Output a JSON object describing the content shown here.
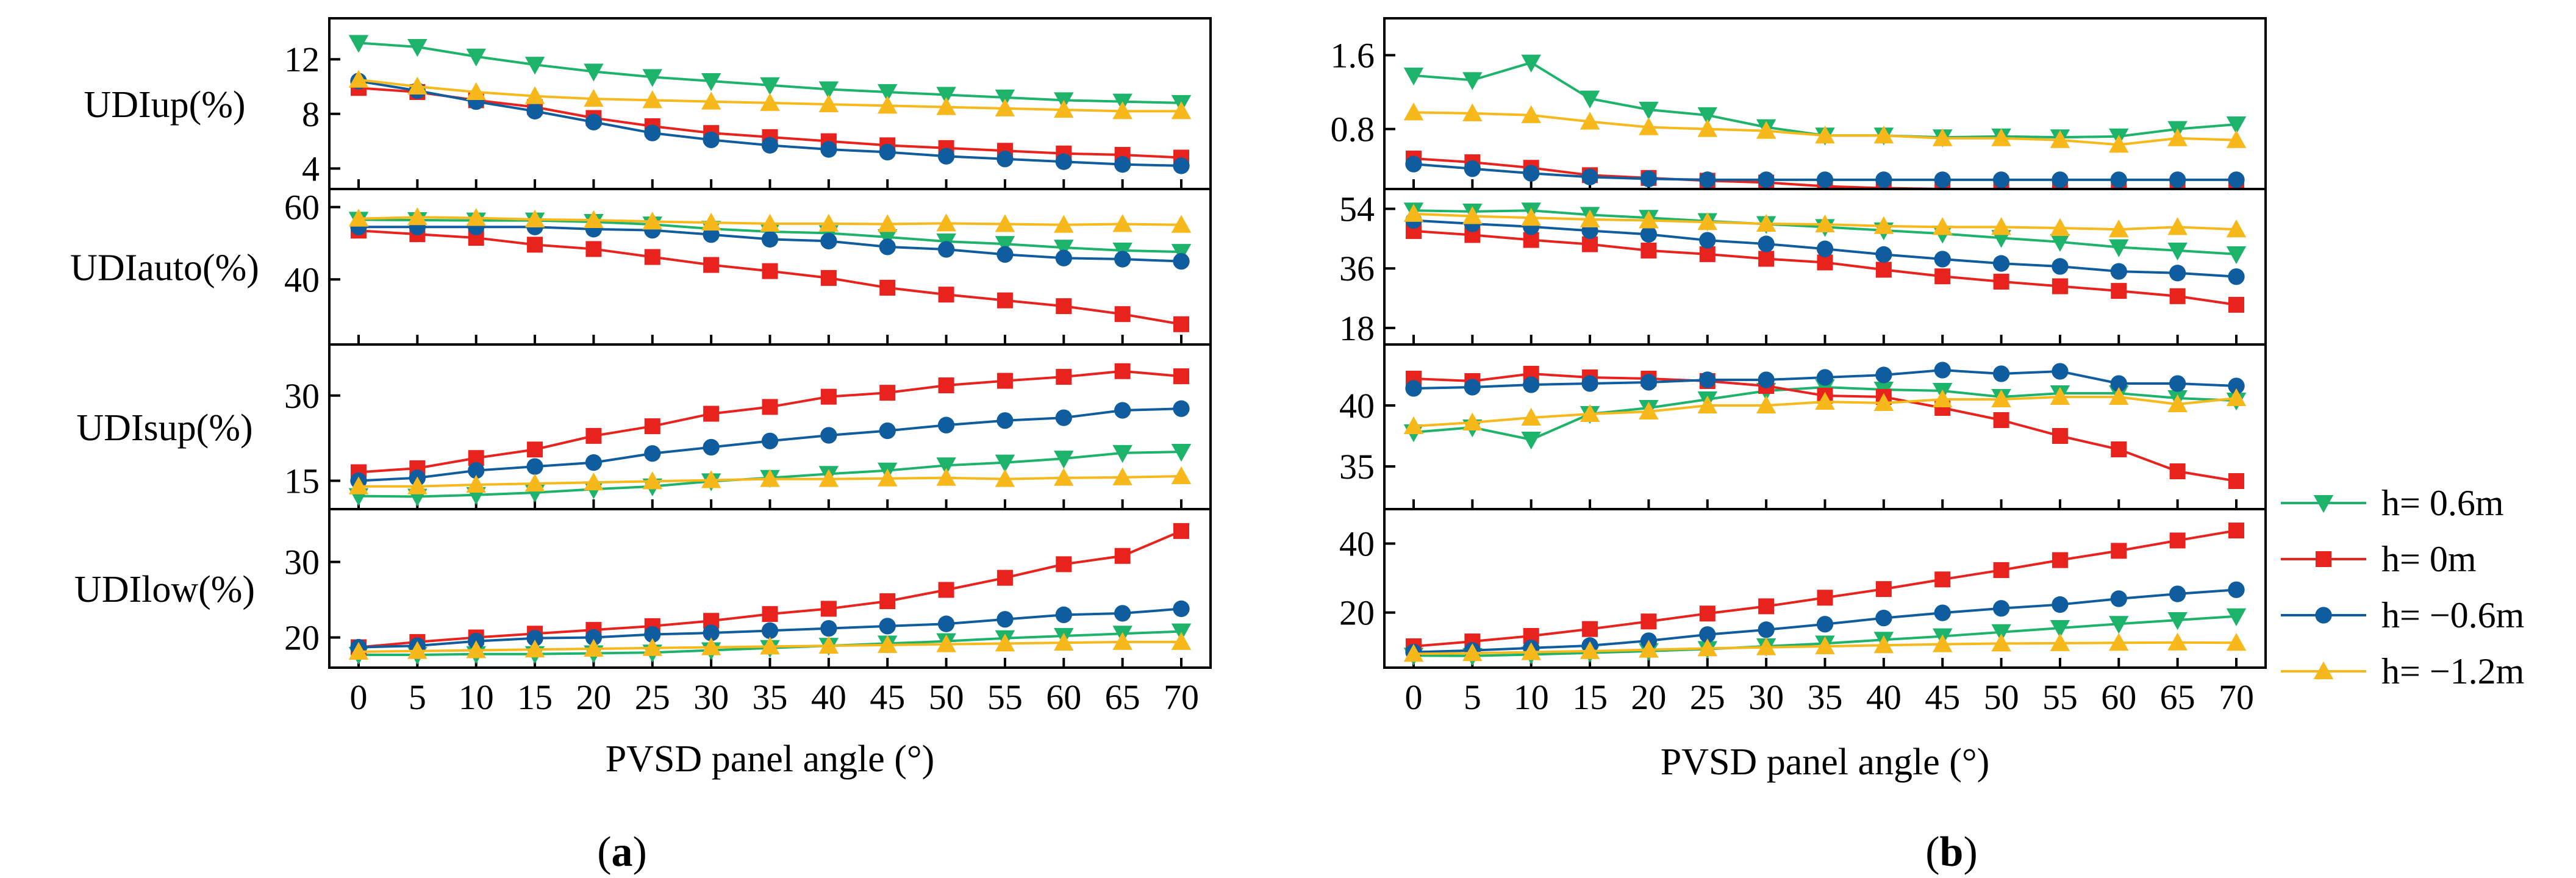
{
  "figure_labels": {
    "a": {
      "open": "(",
      "letter": "a",
      "close": ")"
    },
    "b": {
      "open": "(",
      "letter": "b",
      "close": ")"
    }
  },
  "colors": {
    "h= 0.6m": "#1db36b",
    "h= 0m": "#e8221d",
    "h= −0.6m": "#0f5d9e",
    "h= −1.2m": "#f6b81a"
  },
  "legend": [
    {
      "label": "h= 0.6m",
      "marker": "triangle-down"
    },
    {
      "label": "h= 0m",
      "marker": "square"
    },
    {
      "label": "h= −0.6m",
      "marker": "circle"
    },
    {
      "label": "h= −1.2m",
      "marker": "triangle-up"
    }
  ],
  "chart_data": [
    {
      "type": "line",
      "id": "a",
      "xlabel": "PVSD panel angle (°)",
      "x": [
        0,
        5,
        10,
        15,
        20,
        25,
        30,
        35,
        40,
        45,
        50,
        55,
        60,
        65,
        70
      ],
      "panels": [
        {
          "ylabel": "UDIup(%)",
          "ylim": [
            2.5,
            15
          ],
          "yticks": [
            4,
            8,
            12
          ],
          "series": [
            {
              "name": "h= 0.6m",
              "values": [
                13.2,
                12.9,
                12.2,
                11.6,
                11.1,
                10.7,
                10.4,
                10.1,
                9.8,
                9.6,
                9.4,
                9.2,
                9.0,
                8.9,
                8.8
              ]
            },
            {
              "name": "h= 0m",
              "values": [
                9.9,
                9.6,
                9.0,
                8.5,
                7.7,
                7.1,
                6.6,
                6.3,
                6.0,
                5.7,
                5.5,
                5.3,
                5.1,
                5.0,
                4.8
              ]
            },
            {
              "name": "h= −0.6m",
              "values": [
                10.4,
                9.7,
                8.9,
                8.2,
                7.4,
                6.6,
                6.1,
                5.7,
                5.4,
                5.2,
                4.9,
                4.7,
                4.5,
                4.3,
                4.2
              ]
            },
            {
              "name": "h= −1.2m",
              "values": [
                10.5,
                10.0,
                9.6,
                9.3,
                9.1,
                9.0,
                8.9,
                8.8,
                8.7,
                8.6,
                8.5,
                8.4,
                8.3,
                8.2,
                8.2
              ]
            }
          ]
        },
        {
          "ylabel": "UDIauto(%)",
          "ylim": [
            22,
            65
          ],
          "yticks": [
            40,
            60
          ],
          "series": [
            {
              "name": "h= 0.6m",
              "values": [
                56.5,
                56.4,
                56.3,
                56.3,
                55.9,
                55.2,
                54.0,
                53.2,
                52.8,
                51.7,
                50.5,
                49.8,
                48.8,
                48.0,
                47.6
              ]
            },
            {
              "name": "h= 0m",
              "values": [
                53.5,
                52.5,
                51.5,
                49.6,
                48.4,
                46.2,
                44.0,
                42.3,
                40.4,
                37.7,
                35.8,
                34.2,
                32.6,
                30.4,
                27.6
              ]
            },
            {
              "name": "h= −0.6m",
              "values": [
                54.5,
                54.5,
                54.5,
                54.5,
                53.9,
                53.6,
                52.4,
                51.1,
                50.6,
                49.0,
                48.3,
                46.9,
                45.9,
                45.6,
                45.0
              ]
            },
            {
              "name": "h= −1.2m",
              "values": [
                56.8,
                57.2,
                57.0,
                56.6,
                56.4,
                56.0,
                55.7,
                55.4,
                55.4,
                55.3,
                55.5,
                55.3,
                55.1,
                55.3,
                55.1
              ]
            }
          ]
        },
        {
          "ylabel": "UDIsup(%)",
          "ylim": [
            10,
            39
          ],
          "yticks": [
            15,
            30
          ],
          "series": [
            {
              "name": "h= 0.6m",
              "values": [
                12.3,
                12.2,
                12.5,
                12.9,
                13.5,
                14.0,
                14.9,
                15.5,
                16.2,
                16.8,
                17.7,
                18.2,
                18.9,
                19.9,
                20.1
              ]
            },
            {
              "name": "h= 0m",
              "values": [
                16.5,
                17.2,
                19.0,
                20.5,
                22.9,
                24.6,
                26.8,
                28.0,
                29.8,
                30.5,
                31.8,
                32.6,
                33.3,
                34.3,
                33.4
              ]
            },
            {
              "name": "h= −0.6m",
              "values": [
                15.0,
                15.5,
                16.8,
                17.5,
                18.2,
                19.8,
                20.9,
                22.0,
                23.0,
                23.8,
                24.8,
                25.6,
                26.1,
                27.4,
                27.7
              ]
            },
            {
              "name": "h= −1.2m",
              "values": [
                14.0,
                14.0,
                14.3,
                14.5,
                14.7,
                14.9,
                15.1,
                15.3,
                15.3,
                15.4,
                15.5,
                15.3,
                15.5,
                15.6,
                15.8
              ]
            }
          ]
        },
        {
          "ylabel": "UDIlow(%)",
          "ylim": [
            16,
            37
          ],
          "yticks": [
            20,
            30
          ],
          "series": [
            {
              "name": "h= 0.6m",
              "values": [
                17.7,
                17.7,
                17.8,
                17.8,
                17.9,
                18.0,
                18.3,
                18.6,
                18.9,
                19.2,
                19.5,
                19.9,
                20.2,
                20.5,
                20.8
              ]
            },
            {
              "name": "h= 0m",
              "values": [
                18.7,
                19.4,
                20.0,
                20.5,
                21.0,
                21.5,
                22.2,
                23.1,
                23.8,
                24.8,
                26.3,
                27.9,
                29.7,
                30.8,
                34.1
              ]
            },
            {
              "name": "h= −0.6m",
              "values": [
                18.7,
                18.9,
                19.5,
                19.9,
                20.0,
                20.4,
                20.6,
                20.9,
                21.2,
                21.5,
                21.8,
                22.4,
                23.0,
                23.2,
                23.8
              ]
            },
            {
              "name": "h= −1.2m",
              "values": [
                18.1,
                18.2,
                18.3,
                18.4,
                18.5,
                18.6,
                18.7,
                18.8,
                18.9,
                19.0,
                19.1,
                19.2,
                19.3,
                19.4,
                19.4
              ]
            }
          ]
        }
      ]
    },
    {
      "type": "line",
      "id": "b",
      "xlabel": "PVSD panel angle (°)",
      "x": [
        0,
        5,
        10,
        15,
        20,
        25,
        30,
        35,
        40,
        45,
        50,
        55,
        60,
        65,
        70
      ],
      "panels": [
        {
          "ylabel": "",
          "ylim": [
            0.15,
            2.0
          ],
          "yticks": [
            0.8,
            1.6
          ],
          "series": [
            {
              "name": "h= 0.6m",
              "values": [
                1.38,
                1.33,
                1.52,
                1.13,
                1.01,
                0.95,
                0.82,
                0.73,
                0.73,
                0.71,
                0.72,
                0.71,
                0.72,
                0.8,
                0.85
              ]
            },
            {
              "name": "h= 0m",
              "values": [
                0.48,
                0.44,
                0.38,
                0.3,
                0.27,
                0.24,
                0.22,
                0.18,
                0.16,
                0.15,
                0.15,
                0.15,
                0.15,
                0.15,
                0.15
              ]
            },
            {
              "name": "h= −0.6m",
              "values": [
                0.42,
                0.37,
                0.32,
                0.28,
                0.26,
                0.25,
                0.25,
                0.25,
                0.25,
                0.25,
                0.25,
                0.25,
                0.25,
                0.25,
                0.25
              ]
            },
            {
              "name": "h= −1.2m",
              "values": [
                0.98,
                0.97,
                0.95,
                0.88,
                0.82,
                0.8,
                0.78,
                0.73,
                0.73,
                0.7,
                0.7,
                0.68,
                0.63,
                0.7,
                0.68
              ]
            }
          ]
        },
        {
          "ylabel": "",
          "ylim": [
            13,
            60
          ],
          "yticks": [
            18,
            36,
            54
          ],
          "series": [
            {
              "name": "h= 0.6m",
              "values": [
                53.5,
                53.2,
                53.5,
                52.2,
                51.3,
                50.3,
                49.4,
                48.5,
                47.5,
                46.5,
                45.2,
                44.0,
                42.4,
                41.4,
                40.3
              ]
            },
            {
              "name": "h= 0m",
              "values": [
                47.3,
                46.1,
                44.6,
                43.3,
                41.4,
                40.3,
                38.9,
                37.8,
                35.6,
                33.6,
                32.0,
                30.6,
                29.2,
                27.6,
                25.0
              ]
            },
            {
              "name": "h= −0.6m",
              "values": [
                50.5,
                49.5,
                48.6,
                47.4,
                46.3,
                44.5,
                43.4,
                41.9,
                40.2,
                38.8,
                37.5,
                36.6,
                35.1,
                34.6,
                33.5
              ]
            },
            {
              "name": "h= −1.2m",
              "values": [
                52.5,
                51.8,
                51.3,
                50.8,
                50.5,
                50.0,
                49.5,
                49.3,
                48.8,
                48.5,
                48.5,
                48.2,
                47.8,
                48.5,
                47.8
              ]
            }
          ]
        },
        {
          "ylabel": "",
          "ylim": [
            31.5,
            45
          ],
          "yticks": [
            35,
            40
          ],
          "series": [
            {
              "name": "h= 0.6m",
              "values": [
                37.8,
                38.2,
                37.2,
                39.3,
                39.8,
                40.5,
                41.2,
                41.5,
                41.3,
                41.2,
                40.7,
                41.0,
                41.0,
                40.6,
                40.4
              ]
            },
            {
              "name": "h= 0m",
              "values": [
                42.2,
                42.0,
                42.6,
                42.3,
                42.2,
                42.0,
                41.6,
                40.8,
                40.7,
                39.8,
                38.8,
                37.5,
                36.4,
                34.6,
                33.8
              ]
            },
            {
              "name": "h= −0.6m",
              "values": [
                41.4,
                41.5,
                41.7,
                41.8,
                41.9,
                42.1,
                42.1,
                42.3,
                42.5,
                42.9,
                42.6,
                42.8,
                41.8,
                41.8,
                41.6
              ]
            },
            {
              "name": "h= −1.2m",
              "values": [
                38.3,
                38.6,
                39.0,
                39.3,
                39.5,
                40.0,
                40.0,
                40.3,
                40.2,
                40.5,
                40.5,
                40.7,
                40.7,
                40.1,
                40.6
              ]
            }
          ]
        },
        {
          "ylabel": "",
          "ylim": [
            4,
            50
          ],
          "yticks": [
            20,
            40
          ],
          "series": [
            {
              "name": "h= 0.6m",
              "values": [
                7.5,
                7.4,
                7.8,
                8.3,
                8.8,
                9.4,
                10.2,
                11.0,
                12.1,
                13.1,
                14.3,
                15.5,
                16.7,
                17.8,
                18.9
              ]
            },
            {
              "name": "h= 0m",
              "values": [
                10.2,
                11.6,
                13.2,
                15.2,
                17.4,
                19.7,
                21.8,
                24.3,
                26.8,
                29.6,
                32.3,
                35.2,
                37.9,
                40.9,
                43.8
              ]
            },
            {
              "name": "h= −0.6m",
              "values": [
                8.5,
                9.0,
                9.7,
                10.4,
                11.8,
                13.6,
                15.0,
                16.6,
                18.4,
                19.9,
                21.2,
                22.3,
                24.0,
                25.4,
                26.6
              ]
            },
            {
              "name": "h= −1.2m",
              "values": [
                8.0,
                8.2,
                8.5,
                8.8,
                9.2,
                9.6,
                9.9,
                10.2,
                10.5,
                10.8,
                11.0,
                11.1,
                11.2,
                11.3,
                11.2
              ]
            }
          ]
        }
      ]
    }
  ]
}
